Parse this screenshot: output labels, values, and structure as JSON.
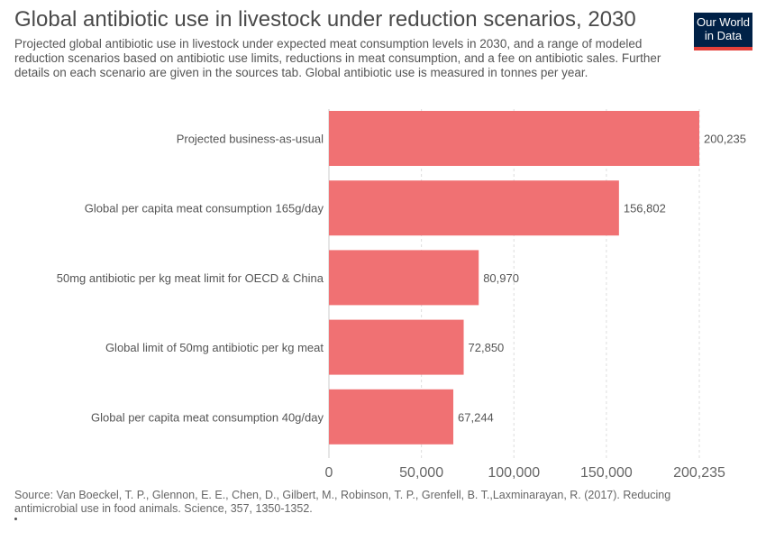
{
  "header": {
    "title": "Global antibiotic use in livestock under reduction scenarios, 2030",
    "subtitle": "Projected global antibiotic use in livestock under expected meat consumption levels in 2030, and a range of modeled reduction scenarios based on antibiotic use limits, reductions in meat consumption, and a fee on antibiotic sales. Further details on each scenario are given in the sources tab. Global antibiotic use is measured in tonnes per year."
  },
  "logo": {
    "line1": "Our World",
    "line2": "in Data"
  },
  "footer": {
    "source": "Source: Van Boeckel, T. P., Glennon, E. E., Chen, D., Gilbert, M., Robinson, T. P., Grenfell, B. T.,Laxminarayan, R. (2017). Reducing antimicrobial use in food animals. Science, 357, 1350-1352."
  },
  "colors": {
    "bar": "#f07173",
    "logo_bg": "#002147",
    "logo_accent": "#e5403a"
  },
  "chart_data": {
    "type": "bar",
    "orientation": "horizontal",
    "categories": [
      "Projected business-as-usual",
      "Global per capita meat consumption 165g/day",
      "50mg antibiotic per kg meat limit for OECD & China",
      "Global limit of 50mg antibiotic per kg meat",
      "Global per capita meat consumption 40g/day"
    ],
    "values": [
      200235,
      156802,
      80970,
      72850,
      67244
    ],
    "value_labels": [
      "200,235",
      "156,802",
      "80,970",
      "72,850",
      "67,244"
    ],
    "x_ticks": [
      0,
      50000,
      100000,
      150000,
      200235
    ],
    "x_tick_labels": [
      "0",
      "50,000",
      "100,000",
      "150,000",
      "200,235"
    ],
    "xlim": [
      0,
      200235
    ],
    "grid": "vertical-dashed"
  }
}
